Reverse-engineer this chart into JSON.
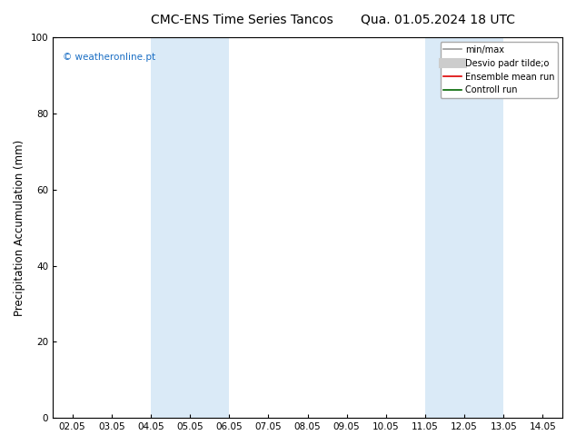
{
  "title_left": "CMC-ENS Time Series Tancos",
  "title_right": "Qua. 01.05.2024 18 UTC",
  "ylabel": "Precipitation Accumulation (mm)",
  "ylim": [
    0,
    100
  ],
  "yticks": [
    0,
    20,
    40,
    60,
    80,
    100
  ],
  "xtick_labels": [
    "02.05",
    "03.05",
    "04.05",
    "05.05",
    "06.05",
    "07.05",
    "08.05",
    "09.05",
    "10.05",
    "11.05",
    "12.05",
    "13.05",
    "14.05"
  ],
  "band_color": "#daeaf7",
  "band_edge_color": "#aaccee",
  "watermark": "© weatheronline.pt",
  "watermark_color": "#1a6ec4",
  "legend_items": [
    {
      "label": "min/max",
      "color": "#999999",
      "lw": 1.2,
      "type": "line"
    },
    {
      "label": "Desvio padr tilde;o",
      "color": "#cccccc",
      "lw": 8,
      "type": "line"
    },
    {
      "label": "Ensemble mean run",
      "color": "#dd0000",
      "lw": 1.2,
      "type": "line"
    },
    {
      "label": "Controll run",
      "color": "#006600",
      "lw": 1.2,
      "type": "line"
    }
  ],
  "bg_color": "#ffffff",
  "title_fontsize": 10,
  "tick_fontsize": 7.5,
  "ylabel_fontsize": 8.5
}
